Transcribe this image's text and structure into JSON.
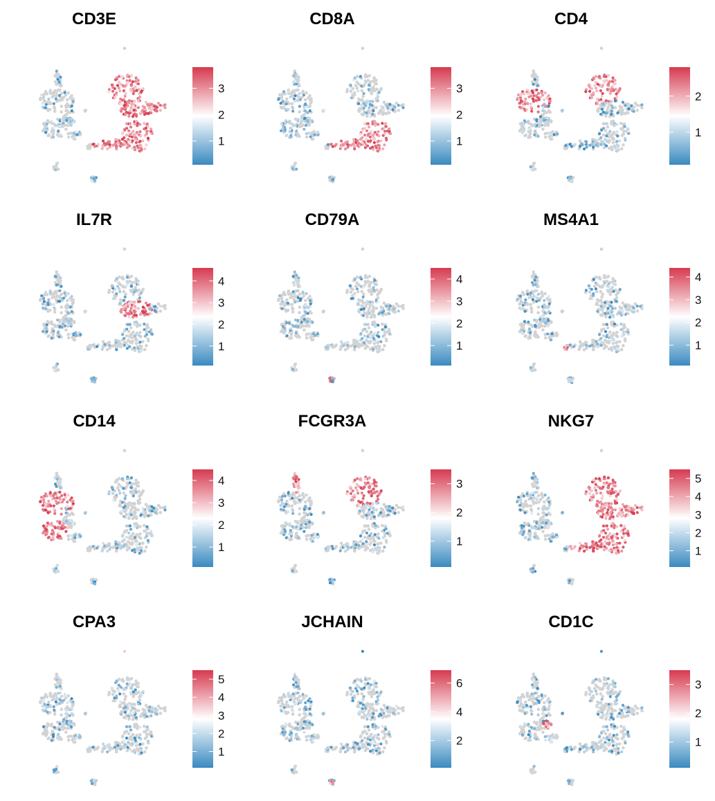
{
  "chart_data": {
    "type": "scatter",
    "layout": "grid of 12 UMAP feature plots (4 rows x 3 columns)",
    "color_scale": {
      "low": "#3a8ac0",
      "mid": "#ffffff",
      "high": "#d63a4f",
      "background_points": "#d3d3d3"
    },
    "panels": [
      {
        "gene": "CD3E",
        "ticks": [
          1,
          2,
          3
        ],
        "color_range": [
          0.1,
          3.8
        ],
        "high_in": [
          "tcell_cluster"
        ]
      },
      {
        "gene": "CD8A",
        "ticks": [
          1,
          2,
          3
        ],
        "color_range": [
          0.1,
          3.8
        ],
        "high_in": [
          "tcell_lower",
          "tcell_branch"
        ]
      },
      {
        "gene": "CD4",
        "ticks": [
          1,
          2
        ],
        "color_range": [
          0.1,
          2.8
        ],
        "high_in": [
          "myeloid_upper",
          "tcell_upper"
        ]
      },
      {
        "gene": "IL7R",
        "ticks": [
          1,
          2,
          3,
          4
        ],
        "color_range": [
          0.1,
          4.6
        ],
        "high_in": [
          "tcell_middle"
        ]
      },
      {
        "gene": "CD79A",
        "ticks": [
          1,
          2,
          3,
          4
        ],
        "color_range": [
          0.1,
          4.5
        ],
        "high_in": [
          "bcell_island"
        ]
      },
      {
        "gene": "MS4A1",
        "ticks": [
          1,
          2,
          3,
          4
        ],
        "color_range": [
          0.1,
          4.4
        ],
        "high_in": [
          "bcell_small"
        ]
      },
      {
        "gene": "CD14",
        "ticks": [
          1,
          2,
          3,
          4
        ],
        "color_range": [
          0.1,
          4.5
        ],
        "high_in": [
          "myeloid_upper",
          "myeloid_lower"
        ]
      },
      {
        "gene": "FCGR3A",
        "ticks": [
          1,
          2,
          3
        ],
        "color_range": [
          0.1,
          3.5
        ],
        "high_in": [
          "myeloid_arm",
          "tcell_upper"
        ]
      },
      {
        "gene": "NKG7",
        "ticks": [
          1,
          2,
          3,
          4,
          5
        ],
        "color_range": [
          0.1,
          5.5
        ],
        "high_in": [
          "tcell_cluster"
        ]
      },
      {
        "gene": "CPA3",
        "ticks": [
          1,
          2,
          3,
          4,
          5
        ],
        "color_range": [
          0.1,
          5.5
        ],
        "high_in": [
          "outlier_top"
        ]
      },
      {
        "gene": "JCHAIN",
        "ticks": [
          2,
          4,
          6
        ],
        "color_range": [
          0.1,
          6.9
        ],
        "high_in": [
          "plasma_island"
        ]
      },
      {
        "gene": "CD1C",
        "ticks": [
          1,
          2,
          3
        ],
        "color_range": [
          0.1,
          3.5
        ],
        "high_in": [
          "dc_patch"
        ]
      }
    ]
  }
}
